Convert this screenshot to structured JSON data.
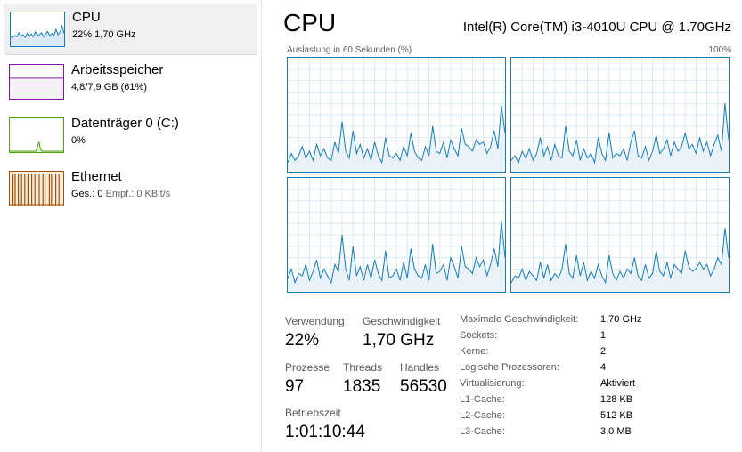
{
  "sidebar": {
    "items": [
      {
        "title": "CPU",
        "sub": "22% 1,70 GHz",
        "color": "#117dbb",
        "selected": true
      },
      {
        "title": "Arbeitsspeicher",
        "sub": "4,8/7,9 GB (61%)",
        "color": "#8b12ae",
        "selected": false
      },
      {
        "title": "Datenträger 0 (C:)",
        "sub": "0%",
        "color": "#4da60c",
        "selected": false
      },
      {
        "title": "Ethernet",
        "sub_prefix": "Ges.: 0",
        "sub_dim": " Empf.: 0 KBit/s",
        "color": "#a74f01",
        "selected": false
      }
    ]
  },
  "header": {
    "title": "CPU",
    "cpu_model": "Intel(R) Core(TM) i3-4010U CPU @ 1.70GHz"
  },
  "graph": {
    "label": "Auslastung in 60 Sekunden (%)",
    "max_label": "100%",
    "line_color": "#117dbb",
    "fill_color": "#e8f1f8",
    "grid_color": "#d9eaf4",
    "y_range": [
      0,
      100
    ],
    "cores": [
      [
        8,
        16,
        10,
        14,
        22,
        12,
        18,
        10,
        24,
        14,
        20,
        12,
        10,
        26,
        16,
        44,
        18,
        12,
        36,
        16,
        24,
        12,
        20,
        10,
        26,
        14,
        8,
        30,
        14,
        12,
        16,
        10,
        22,
        14,
        34,
        18,
        12,
        10,
        22,
        14,
        40,
        18,
        16,
        26,
        12,
        28,
        20,
        14,
        38,
        24,
        22,
        18,
        28,
        24,
        26,
        16,
        22,
        36,
        20,
        58,
        34
      ],
      [
        10,
        14,
        8,
        18,
        12,
        20,
        10,
        16,
        30,
        14,
        22,
        10,
        24,
        14,
        12,
        40,
        18,
        14,
        28,
        10,
        20,
        12,
        16,
        8,
        30,
        16,
        10,
        34,
        12,
        16,
        14,
        20,
        10,
        26,
        36,
        14,
        12,
        22,
        10,
        18,
        32,
        16,
        20,
        28,
        14,
        26,
        18,
        22,
        34,
        20,
        24,
        16,
        30,
        18,
        26,
        14,
        24,
        32,
        18,
        60,
        28
      ],
      [
        12,
        20,
        8,
        16,
        14,
        24,
        10,
        18,
        28,
        12,
        20,
        14,
        8,
        24,
        18,
        50,
        20,
        10,
        40,
        14,
        22,
        10,
        24,
        12,
        28,
        16,
        10,
        36,
        12,
        14,
        20,
        10,
        26,
        12,
        38,
        20,
        14,
        12,
        24,
        10,
        42,
        16,
        18,
        24,
        10,
        30,
        22,
        12,
        40,
        22,
        20,
        16,
        30,
        22,
        28,
        14,
        24,
        38,
        22,
        62,
        30
      ],
      [
        8,
        14,
        12,
        20,
        10,
        18,
        14,
        10,
        26,
        12,
        24,
        10,
        16,
        12,
        20,
        42,
        16,
        12,
        32,
        14,
        26,
        10,
        18,
        12,
        24,
        14,
        8,
        32,
        16,
        10,
        18,
        12,
        20,
        16,
        30,
        14,
        10,
        24,
        12,
        16,
        36,
        18,
        14,
        26,
        12,
        24,
        20,
        16,
        36,
        22,
        18,
        20,
        26,
        20,
        24,
        14,
        20,
        30,
        24,
        56,
        30
      ]
    ]
  },
  "stats": {
    "utilization": {
      "label": "Verwendung",
      "value": "22%"
    },
    "speed": {
      "label": "Geschwindigkeit",
      "value": "1,70 GHz"
    },
    "processes": {
      "label": "Prozesse",
      "value": "97"
    },
    "threads": {
      "label": "Threads",
      "value": "1835"
    },
    "handles": {
      "label": "Handles",
      "value": "56530"
    },
    "uptime": {
      "label": "Betriebszeit",
      "value": "1:01:10:44"
    }
  },
  "details": [
    {
      "key": "Maximale Geschwindigkeit:",
      "value": "1,70 GHz"
    },
    {
      "key": "Sockets:",
      "value": "1"
    },
    {
      "key": "Kerne:",
      "value": "2"
    },
    {
      "key": "Logische Prozessoren:",
      "value": "4"
    },
    {
      "key": "Virtualisierung:",
      "value": "Aktiviert"
    },
    {
      "key": "L1-Cache:",
      "value": "128 KB"
    },
    {
      "key": "L2-Cache:",
      "value": "512 KB"
    },
    {
      "key": "L3-Cache:",
      "value": "3,0 MB"
    }
  ],
  "thumbnails": {
    "cpu": [
      70,
      74,
      68,
      72,
      60,
      70,
      66,
      74,
      62,
      70,
      64,
      72,
      58,
      68,
      66,
      60,
      72,
      64,
      56,
      70,
      62,
      68,
      50,
      66,
      58,
      40,
      62
    ],
    "memory_fraction": 0.61,
    "disk": [
      0,
      0,
      0,
      0,
      0,
      0,
      0,
      0,
      0,
      0,
      0,
      0,
      0,
      0,
      0,
      0,
      0,
      12,
      28,
      6,
      0,
      0,
      0,
      0,
      0,
      0,
      0,
      0,
      0,
      0,
      0,
      0,
      0,
      0
    ],
    "ethernet_spikes": [
      0.06,
      0.1,
      0.16,
      0.22,
      0.28,
      0.34,
      0.41,
      0.47,
      0.55,
      0.62,
      0.66,
      0.74,
      0.78,
      0.86,
      0.92
    ]
  }
}
